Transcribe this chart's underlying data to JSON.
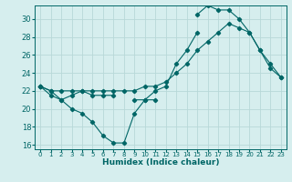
{
  "xlabel": "Humidex (Indice chaleur)",
  "background_color": "#d6eeee",
  "grid_color": "#b8d8d8",
  "line_color": "#006666",
  "spine_color": "#006666",
  "xlim": [
    -0.5,
    23.5
  ],
  "ylim": [
    15.5,
    31.5
  ],
  "xticks": [
    0,
    1,
    2,
    3,
    4,
    5,
    6,
    7,
    8,
    9,
    10,
    11,
    12,
    13,
    14,
    15,
    16,
    17,
    18,
    19,
    20,
    21,
    22,
    23
  ],
  "yticks": [
    16,
    18,
    20,
    22,
    24,
    26,
    28,
    30
  ],
  "series": [
    [
      22.5,
      22.0,
      21.0,
      20.0,
      19.5,
      18.5,
      17.0,
      16.2,
      16.2,
      19.5,
      21.0,
      21.0,
      null,
      null,
      null,
      null,
      null,
      null,
      null,
      null,
      null,
      null,
      null,
      null
    ],
    [
      22.5,
      21.5,
      21.0,
      21.5,
      22.0,
      21.5,
      21.5,
      21.5,
      null,
      21.0,
      21.0,
      22.0,
      22.5,
      25.0,
      26.5,
      28.5,
      null,
      null,
      null,
      null,
      null,
      null,
      null,
      null
    ],
    [
      22.5,
      22.0,
      22.0,
      22.0,
      22.0,
      22.0,
      22.0,
      22.0,
      22.0,
      22.0,
      22.5,
      22.5,
      23.0,
      24.0,
      25.0,
      26.5,
      27.5,
      28.5,
      29.5,
      29.0,
      28.5,
      26.5,
      24.5,
      23.5
    ],
    [
      22.5,
      null,
      null,
      null,
      null,
      null,
      null,
      null,
      null,
      null,
      null,
      null,
      null,
      null,
      null,
      30.5,
      31.5,
      31.0,
      31.0,
      30.0,
      28.5,
      26.5,
      25.0,
      23.5
    ]
  ]
}
